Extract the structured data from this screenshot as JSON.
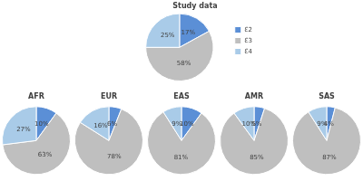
{
  "chart_data": [
    {
      "type": "pie",
      "title": "Study data",
      "categories": [
        "Ɛ2",
        "Ɛ3",
        "Ɛ4"
      ],
      "values": [
        17,
        58,
        25
      ],
      "value_labels": [
        "17%",
        "58%",
        "25%"
      ],
      "colors": [
        "#5b8fd6",
        "#bfbfbf",
        "#a9cbe8"
      ],
      "data_labels": true,
      "legend": "right"
    },
    {
      "type": "pie",
      "title": "AFR",
      "categories": [
        "Ɛ2",
        "Ɛ3",
        "Ɛ4"
      ],
      "values": [
        10,
        63,
        27
      ],
      "value_labels": [
        "10%",
        "63%",
        "27%"
      ],
      "colors": [
        "#5b8fd6",
        "#bfbfbf",
        "#a9cbe8"
      ],
      "data_labels": true
    },
    {
      "type": "pie",
      "title": "EUR",
      "categories": [
        "Ɛ2",
        "Ɛ3",
        "Ɛ4"
      ],
      "values": [
        6,
        78,
        16
      ],
      "value_labels": [
        "6%",
        "78%",
        "16%"
      ],
      "colors": [
        "#5b8fd6",
        "#bfbfbf",
        "#a9cbe8"
      ],
      "data_labels": true
    },
    {
      "type": "pie",
      "title": "EAS",
      "categories": [
        "Ɛ2",
        "Ɛ3",
        "Ɛ4"
      ],
      "values": [
        10,
        81,
        9
      ],
      "value_labels": [
        "10%",
        "81%",
        "9%"
      ],
      "colors": [
        "#5b8fd6",
        "#bfbfbf",
        "#a9cbe8"
      ],
      "data_labels": true
    },
    {
      "type": "pie",
      "title": "AMR",
      "categories": [
        "Ɛ2",
        "Ɛ3",
        "Ɛ4"
      ],
      "values": [
        5,
        85,
        10
      ],
      "value_labels": [
        "5%",
        "85%",
        "10%"
      ],
      "colors": [
        "#5b8fd6",
        "#bfbfbf",
        "#a9cbe8"
      ],
      "data_labels": true
    },
    {
      "type": "pie",
      "title": "SAS",
      "categories": [
        "Ɛ2",
        "Ɛ3",
        "Ɛ4"
      ],
      "values": [
        4,
        87,
        9
      ],
      "value_labels": [
        "4%",
        "87%",
        "9%"
      ],
      "colors": [
        "#5b8fd6",
        "#bfbfbf",
        "#a9cbe8"
      ],
      "data_labels": true
    }
  ]
}
